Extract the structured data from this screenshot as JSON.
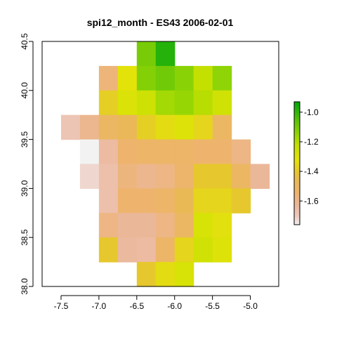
{
  "chart_data": {
    "type": "heatmap",
    "title": "spi12_month - ES43 2006-02-01",
    "xlabel": "",
    "ylabel": "",
    "xlim": [
      -7.75,
      -4.625
    ],
    "ylim": [
      38.0,
      40.5
    ],
    "x_ticks": [
      "-7.5",
      "-7.0",
      "-6.5",
      "-6.0",
      "-5.5",
      "-5.0"
    ],
    "x_tick_values": [
      -7.5,
      -7.0,
      -6.5,
      -6.0,
      -5.5,
      -5.0
    ],
    "y_ticks": [
      "38.0",
      "38.5",
      "39.0",
      "39.5",
      "40.0",
      "40.5"
    ],
    "y_tick_values": [
      38.0,
      38.5,
      39.0,
      39.5,
      40.0,
      40.5
    ],
    "cell_size": 0.25,
    "x_centers": [
      -7.375,
      -7.125,
      -6.875,
      -6.625,
      -6.375,
      -6.125,
      -5.875,
      -5.625,
      -5.375,
      -5.125,
      -4.875
    ],
    "y_centers": [
      40.375,
      40.125,
      39.875,
      39.625,
      39.375,
      39.125,
      38.875,
      38.625,
      38.375,
      38.125
    ],
    "values": [
      [
        null,
        null,
        null,
        null,
        -1.1,
        -0.98,
        null,
        null,
        null,
        null,
        null
      ],
      [
        null,
        null,
        -1.56,
        -1.32,
        -1.12,
        -1.09,
        -1.13,
        -1.22,
        -1.14,
        null,
        null
      ],
      [
        null,
        null,
        -1.38,
        -1.29,
        -1.25,
        -1.17,
        -1.15,
        -1.2,
        -1.26,
        null,
        null
      ],
      [
        -1.68,
        -1.6,
        -1.5,
        -1.47,
        -1.38,
        -1.34,
        -1.3,
        -1.36,
        -1.5,
        null,
        null
      ],
      [
        null,
        -1.76,
        -1.64,
        -1.54,
        -1.52,
        -1.52,
        -1.52,
        -1.54,
        -1.54,
        -1.58,
        null
      ],
      [
        null,
        -1.72,
        -1.66,
        -1.57,
        -1.6,
        -1.58,
        -1.53,
        -1.4,
        -1.4,
        -1.5,
        -1.62
      ],
      [
        null,
        null,
        -1.66,
        -1.54,
        -1.54,
        -1.52,
        -1.46,
        -1.36,
        -1.36,
        -1.4,
        null
      ],
      [
        null,
        null,
        -1.58,
        -1.62,
        -1.62,
        -1.58,
        -1.5,
        -1.28,
        -1.33,
        null,
        null
      ],
      [
        null,
        null,
        -1.4,
        -1.63,
        -1.64,
        -1.52,
        -1.36,
        -1.26,
        -1.3,
        null,
        null
      ],
      [
        null,
        null,
        null,
        null,
        -1.4,
        -1.34,
        -1.28,
        null,
        null,
        null,
        null
      ]
    ],
    "colorbar": {
      "min": -1.76,
      "max": -0.93,
      "tick_values": [
        -1.6,
        -1.4,
        -1.2,
        -1.0
      ],
      "tick_labels": [
        "-1.6",
        "-1.4",
        "-1.2",
        "-1.0"
      ],
      "stops": [
        {
          "v": -1.76,
          "c": "#f2f2f2"
        },
        {
          "v": -1.7,
          "c": "#eec9bd"
        },
        {
          "v": -1.62,
          "c": "#ebb799"
        },
        {
          "v": -1.54,
          "c": "#eeb46e"
        },
        {
          "v": -1.46,
          "c": "#e9b956"
        },
        {
          "v": -1.4,
          "c": "#e6c82e"
        },
        {
          "v": -1.32,
          "c": "#e3e30a"
        },
        {
          "v": -1.22,
          "c": "#c4e001"
        },
        {
          "v": -1.14,
          "c": "#8fd406"
        },
        {
          "v": -1.06,
          "c": "#5ec409"
        },
        {
          "v": -0.93,
          "c": "#02a70a"
        }
      ]
    }
  }
}
